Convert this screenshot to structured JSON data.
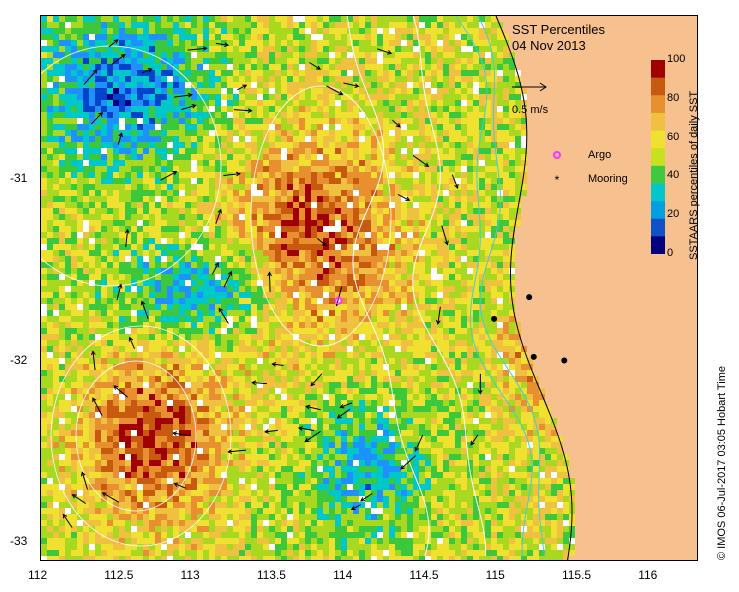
{
  "title": "SST Percentiles",
  "date": "04 Nov 2013",
  "scale_label": "0.5 m/s",
  "legend": {
    "argo_label": "Argo",
    "mooring_label": "Mooring",
    "argo_color": "#ff33ff",
    "mooring_color": "#000000"
  },
  "colorbar": {
    "label": "SSTAARS percentiles of daily SST",
    "ticks": [
      "100",
      "80",
      "60",
      "40",
      "20",
      "0"
    ],
    "colors": [
      "#000080",
      "#0044cc",
      "#1e90ff",
      "#00c8c8",
      "#3cc83c",
      "#a8d820",
      "#f0e030",
      "#f0c040",
      "#e89030",
      "#c85a10",
      "#a00000"
    ]
  },
  "credit": "© IMOS 06-Jul-2017 03:05 Hobart Time",
  "x_ticks": [
    "112",
    "112.5",
    "113",
    "113.5",
    "114",
    "114.5",
    "115",
    "115.5",
    "116"
  ],
  "y_ticks": [
    "-31",
    "-32",
    "-33"
  ],
  "map": {
    "lon_range": [
      112,
      116.3
    ],
    "lat_range": [
      -33.1,
      -30.1
    ],
    "land_color": "#f7c08f",
    "argo_positions": [
      [
        113.95,
        -31.67
      ]
    ],
    "mooring_positions": [
      [
        115.2,
        -31.65
      ],
      [
        114.97,
        -31.77
      ],
      [
        115.23,
        -31.98
      ],
      [
        115.43,
        -32.0
      ]
    ]
  }
}
